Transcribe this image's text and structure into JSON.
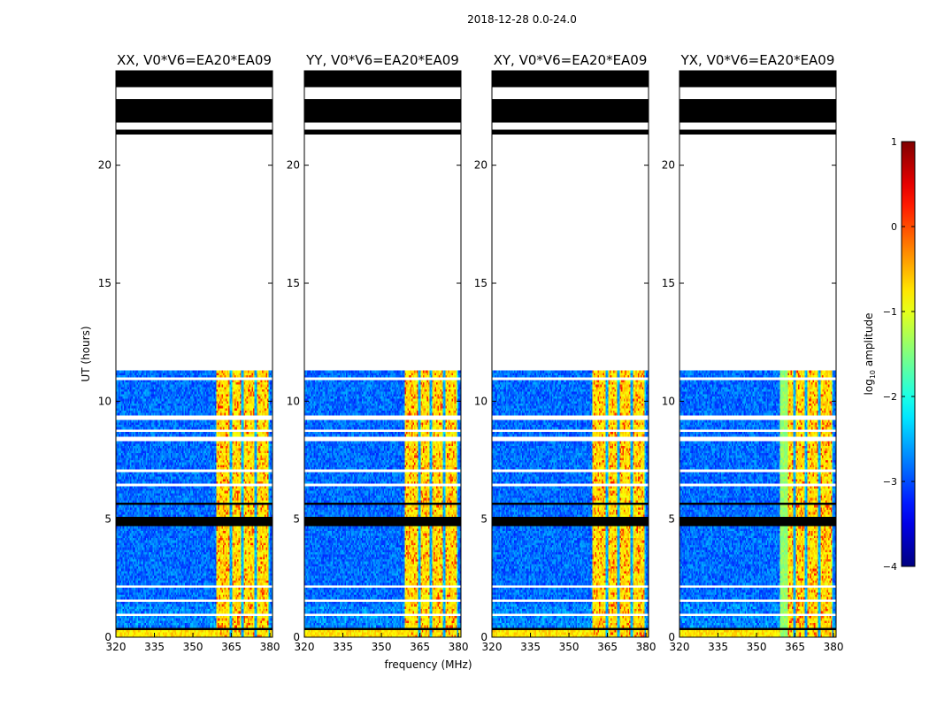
{
  "suptitle": "2018-12-28 0.0-24.0",
  "chart_data": {
    "type": "heatmap",
    "title": "2018-12-28 0.0-24.0",
    "xlabel": "frequency (MHz)",
    "ylabel": "UT (hours)",
    "xlim": [
      320,
      381
    ],
    "ylim": [
      0,
      24
    ],
    "xticks": [
      320,
      335,
      350,
      365,
      380
    ],
    "yticks": [
      0,
      5,
      10,
      15,
      20
    ],
    "colorbar": {
      "label": "log10 amplitude",
      "range": [
        -4,
        1
      ],
      "ticks": [
        1,
        0,
        -1,
        -2,
        -3,
        -4
      ],
      "colormap": "jet"
    },
    "data_time_range_hours": [
      0.0,
      11.3
    ],
    "bright_band_mhz": [
      359,
      380
    ],
    "panels": [
      {
        "title": "XX, V0*V6=EA20*EA09",
        "polarization": "XX"
      },
      {
        "title": "YY, V0*V6=EA20*EA09",
        "polarization": "YY"
      },
      {
        "title": "XY, V0*V6=EA20*EA09",
        "polarization": "XY"
      },
      {
        "title": "YX, V0*V6=EA20*EA09",
        "polarization": "YX"
      }
    ]
  }
}
